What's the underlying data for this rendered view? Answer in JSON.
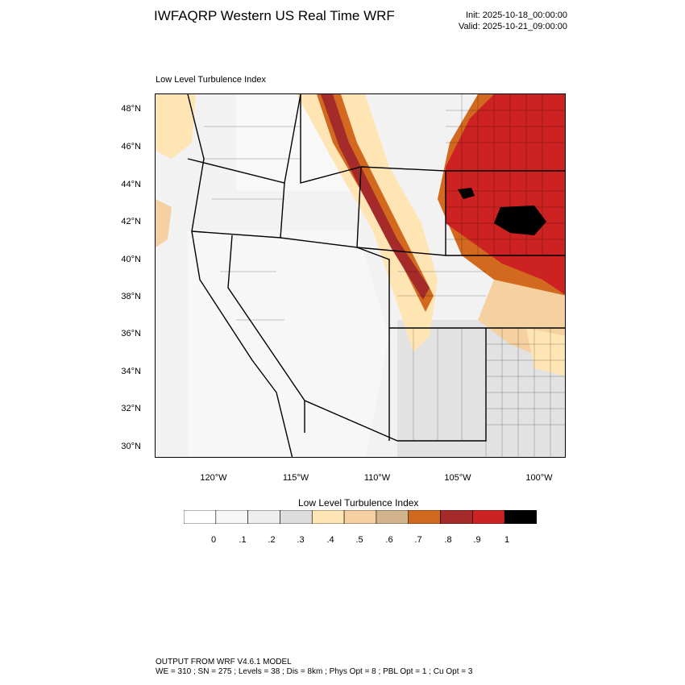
{
  "header": {
    "title": "IWFAQRP Western US Real Time WRF",
    "init": "Init: 2025-10-18_00:00:00",
    "valid": "Valid: 2025-10-21_09:00:00"
  },
  "map": {
    "field_label": "Low Level Turbulence Index",
    "lat_labels": [
      "48°N",
      "46°N",
      "44°N",
      "42°N",
      "40°N",
      "38°N",
      "36°N",
      "34°N",
      "32°N",
      "30°N"
    ],
    "lon_labels": [
      "120°W",
      "115°W",
      "110°W",
      "105°W",
      "100°W"
    ],
    "colors": {
      "background": "#f2f2f2",
      "outline": "#000000",
      "high": "#cc2a2a",
      "mid_high": "#a52a2a",
      "mid": "#d2691e",
      "low_orange": "#f5deb3",
      "max": "#000000"
    }
  },
  "colorbar": {
    "title": "Low Level Turbulence Index",
    "colors": [
      "#ffffff",
      "#f7f7f7",
      "#eeeeee",
      "#dddddd",
      "#ffe5b4",
      "#f5d0a0",
      "#d2b48c",
      "#d2691e",
      "#a52a2a",
      "#cc2222",
      "#000000"
    ],
    "labels": [
      "0",
      ".1",
      ".2",
      ".3",
      ".4",
      ".5",
      ".6",
      ".7",
      ".8",
      ".9",
      "1"
    ]
  },
  "footer": {
    "line1": "OUTPUT FROM WRF V4.6.1 MODEL",
    "line2": "WE = 310 ; SN = 275 ; Levels = 38 ; Dis = 8km ; Phys Opt = 8 ; PBL Opt = 1 ; Cu Opt = 3"
  }
}
